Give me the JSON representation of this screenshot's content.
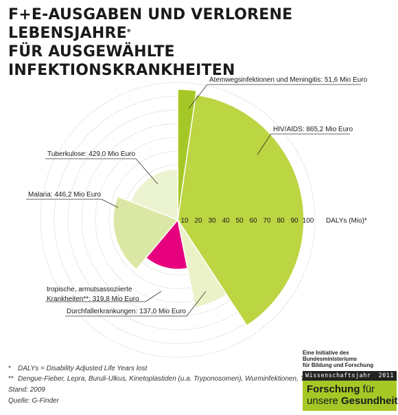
{
  "title": {
    "line1": "F+E-AUSGABEN UND VERLORENE LEBENSJAHRE",
    "line1_mark": "*",
    "line2": "FÜR AUSGEWÄHLTE INFEKTIONSKRANKHEITEN"
  },
  "chart_data": {
    "type": "polar-area",
    "title": "F+E-AUSGABEN UND VERLORENE LEBENSJAHRE* FÜR AUSGEWÄHLTE INFEKTIONSKRANKHEITEN",
    "radial_axis": {
      "label": "DALYs (Mio)*",
      "ticks": [
        "10",
        "20",
        "30",
        "40",
        "50",
        "60",
        "70",
        "80",
        "90",
        "100"
      ],
      "range": [
        0,
        100
      ]
    },
    "angle_meaning": "F+E-Ausgaben (Mio Euro)",
    "series": [
      {
        "name": "Atemwegsinfektionen und Meningitis",
        "label": "Atemwegsinfektionen und Meningitis: 51,6 Mio Euro",
        "spending": 51.6,
        "daly": 95,
        "color": "#a6c827"
      },
      {
        "name": "HIV/AIDS",
        "label": "HIV/AIDS: 865,2 Mio Euro",
        "spending": 865.2,
        "daly": 92,
        "color": "#bcd542"
      },
      {
        "name": "Durchfallerkrankungen",
        "label": "Durchfallerkrankungen: 137,0 Mio Euro",
        "spending": 137.0,
        "daly": 65,
        "color": "#ebf2c8"
      },
      {
        "name": "tropische, armutsassoziierte Krankheiten**",
        "label_line1": "tropische, armutsassoziierte",
        "label_line2": "Krankheiten**: 319,8 Mio Euro",
        "spending": 319.8,
        "daly": 36,
        "color": "#e6007e"
      },
      {
        "name": "Malaria",
        "label": "Malaria: 446,2 Mio Euro",
        "spending": 446.2,
        "daly": 47,
        "color": "#dbe8a5"
      },
      {
        "name": "Tuberkulose",
        "label": "Tuberkulose: 429,0 Mio Euro",
        "spending": 429.0,
        "daly": 37,
        "color": "#ecf3d0"
      }
    ],
    "grid": true
  },
  "footnotes": {
    "daly_mark": "*",
    "daly_text": "DALYs = Disability Adjusted Life Years lost",
    "ntd_mark": "**",
    "ntd_text": "Dengue-Fieber, Lepra, Buruli-Ulkus, Kinetoplastiden (u.a. Tryponosomen), Wurminfektionen, Trachom",
    "stand": "Stand: 2009",
    "quelle": "Quelle: G-Finder"
  },
  "logo": {
    "initiative_line1": "Eine Initiative des Bundesministeriums",
    "initiative_line2": "für Bildung und Forschung",
    "bar_left": "Wissenschaftsjahr",
    "bar_right": "2011",
    "line1_bold": "Forschung",
    "line1_rest": " für",
    "line2_rest": "unsere ",
    "line2_bold": "Gesundheit",
    "color": "#a6c827"
  }
}
